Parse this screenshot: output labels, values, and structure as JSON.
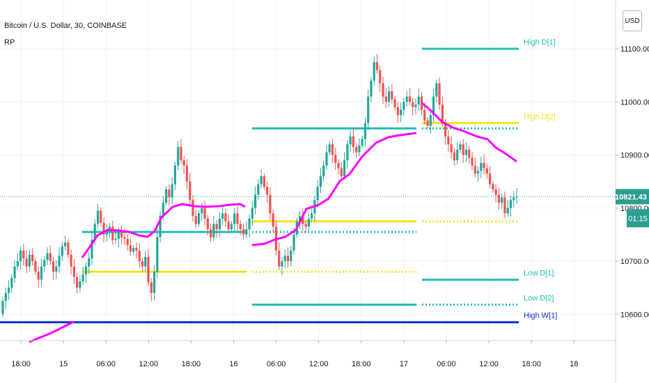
{
  "header": {
    "symbol": "Bitcoin / U.S. Dollar, 30, COINBASE",
    "indicator": "RP"
  },
  "currency_button": "USD",
  "colors": {
    "up": "#26a69a",
    "down": "#ef5350",
    "ma": "#ff00ff",
    "teal": "#1fbfb8",
    "yellow": "#f5e31a",
    "blue": "#0d2fd6",
    "badge_bg": "#2b9f8f",
    "badge_text": "#ffffff"
  },
  "chart_data": {
    "type": "candlestick",
    "title": "Bitcoin / U.S. Dollar, 30, COINBASE",
    "ylim": [
      10530,
      11150
    ],
    "yticks": [
      10600,
      10700,
      10800,
      10900,
      11000,
      11100
    ],
    "ytick_labels": [
      "10600.00",
      "10700.00",
      "10800.00",
      "10900.00",
      "11000.00",
      "11100.00"
    ],
    "x_tick_labels": [
      "18:00",
      "15",
      "06:00",
      "12:00",
      "18:00",
      "16",
      "06:00",
      "12:00",
      "18:00",
      "17",
      "06:00",
      "12:00",
      "18:00",
      "18"
    ],
    "last_price": "10821.43",
    "countdown": "01:15",
    "candles_close": [
      10625,
      10640,
      10650,
      10668,
      10690,
      10700,
      10720,
      10705,
      10690,
      10712,
      10700,
      10680,
      10665,
      10690,
      10702,
      10715,
      10700,
      10680,
      10690,
      10710,
      10728,
      10735,
      10712,
      10690,
      10670,
      10650,
      10662,
      10675,
      10690,
      10705,
      10740,
      10770,
      10795,
      10772,
      10750,
      10755,
      10765,
      10740,
      10742,
      10755,
      10745,
      10742,
      10730,
      10718,
      10725,
      10720,
      10700,
      10690,
      10708,
      10660,
      10640,
      10680,
      10745,
      10785,
      10810,
      10835,
      10820,
      10845,
      10880,
      10915,
      10890,
      10880,
      10850,
      10815,
      10785,
      10770,
      10790,
      10800,
      10780,
      10760,
      10745,
      10770,
      10760,
      10780,
      10790,
      10775,
      10760,
      10770,
      10790,
      10770,
      10760,
      10750,
      10760,
      10780,
      10800,
      10825,
      10845,
      10860,
      10840,
      10825,
      10790,
      10765,
      10720,
      10690,
      10700,
      10710,
      10700,
      10720,
      10750,
      10775,
      10785,
      10770,
      10765,
      10780,
      10790,
      10815,
      10840,
      10860,
      10880,
      10905,
      10920,
      10900,
      10885,
      10875,
      10860,
      10890,
      10920,
      10935,
      10915,
      10905,
      10918,
      10930,
      10960,
      11010,
      11040,
      11075,
      11060,
      11035,
      11010,
      11000,
      11020,
      11005,
      10990,
      10975,
      10985,
      11000,
      11010,
      11000,
      10990,
      10995,
      11010,
      10985,
      10965,
      10955,
      10975,
      11010,
      11035,
      10995,
      10960,
      10935,
      10920,
      10905,
      10890,
      10910,
      10920,
      10900,
      10910,
      10895,
      10880,
      10865,
      10870,
      10885,
      10875,
      10865,
      10845,
      10835,
      10825,
      10810,
      10820,
      10790,
      10800,
      10815,
      10820,
      10821.43
    ],
    "series": [
      {
        "name": "RP",
        "color": "#ff00ff",
        "values": [
          [
            10553,
            10566
          ],
          [
            10558,
            10569
          ],
          [
            10564,
            10575
          ],
          [
            10683,
            10714
          ],
          [
            10703,
            10715
          ],
          [
            10710,
            10747
          ],
          [
            10722,
            10771
          ],
          [
            10756,
            10773
          ],
          [
            10762,
            10772
          ],
          [
            10767,
            10777
          ],
          [
            10756,
            10778
          ],
          [
            10758,
            10773
          ],
          [
            10721,
            10746
          ],
          [
            10729,
            10744
          ],
          [
            10755,
            10748
          ],
          [
            10786,
            10787
          ],
          [
            10817,
            10851
          ],
          [
            10857,
            10882
          ],
          [
            10903,
            10924
          ],
          [
            10936,
            10934
          ],
          [
            10990,
            10987
          ],
          [
            10978,
            10961
          ],
          [
            10940,
            10926
          ],
          [
            10907,
            10875
          ]
        ]
      }
    ],
    "levels": [
      {
        "label": "High D[1]",
        "value": 11100,
        "color": "#1fbfb8",
        "style": "solid",
        "from": 606,
        "to": 745,
        "label_shown": true
      },
      {
        "label": "High D[2]",
        "value": 10960,
        "color": "#f5e31a",
        "style": "solid",
        "from": 606,
        "to": 745,
        "label_shown": true
      },
      {
        "label": "",
        "value": 10950,
        "color": "#1fbfb8",
        "style": "dotted",
        "from": 606,
        "to": 745,
        "label_shown": false
      },
      {
        "label": "",
        "value": 10950,
        "color": "#1fbfb8",
        "style": "solid",
        "from": 362,
        "to": 598,
        "label_shown": false
      },
      {
        "label": "",
        "value": 10775,
        "color": "#f5e31a",
        "style": "solid",
        "from": 362,
        "to": 598,
        "label_shown": false
      },
      {
        "label": "",
        "value": 10775,
        "color": "#f5e31a",
        "style": "dotted",
        "from": 606,
        "to": 745,
        "label_shown": false
      },
      {
        "label": "",
        "value": 10755,
        "color": "#1fbfb8",
        "style": "dotted",
        "from": 362,
        "to": 598,
        "label_shown": false
      },
      {
        "label": "",
        "value": 10755,
        "color": "#1fbfb8",
        "style": "solid",
        "from": 118,
        "to": 354,
        "label_shown": false
      },
      {
        "label": "",
        "value": 10680,
        "color": "#f5e31a",
        "style": "solid",
        "from": 118,
        "to": 354,
        "label_shown": false
      },
      {
        "label": "",
        "value": 10680,
        "color": "#f5e31a",
        "style": "dotted",
        "from": 362,
        "to": 598,
        "label_shown": false
      },
      {
        "label": "Low D[1]",
        "value": 10665,
        "color": "#1fbfb8",
        "style": "solid",
        "from": 606,
        "to": 745,
        "label_shown": true
      },
      {
        "label": "Low D[2]",
        "value": 10618,
        "color": "#1fbfb8",
        "style": "solid",
        "from": 362,
        "to": 598,
        "label_shown": false
      },
      {
        "label": "Low D[2]",
        "value": 10618,
        "color": "#1fbfb8",
        "style": "dotted",
        "from": 606,
        "to": 745,
        "label_shown": true
      },
      {
        "label": "",
        "value": 10585,
        "color": "#1fbfb8",
        "style": "dotted",
        "from": 118,
        "to": 354,
        "label_shown": false
      },
      {
        "label": "High W[1]",
        "value": 10585,
        "color": "#0d2fd6",
        "style": "solid",
        "from": 0,
        "to": 745,
        "label_shown": true
      }
    ]
  }
}
